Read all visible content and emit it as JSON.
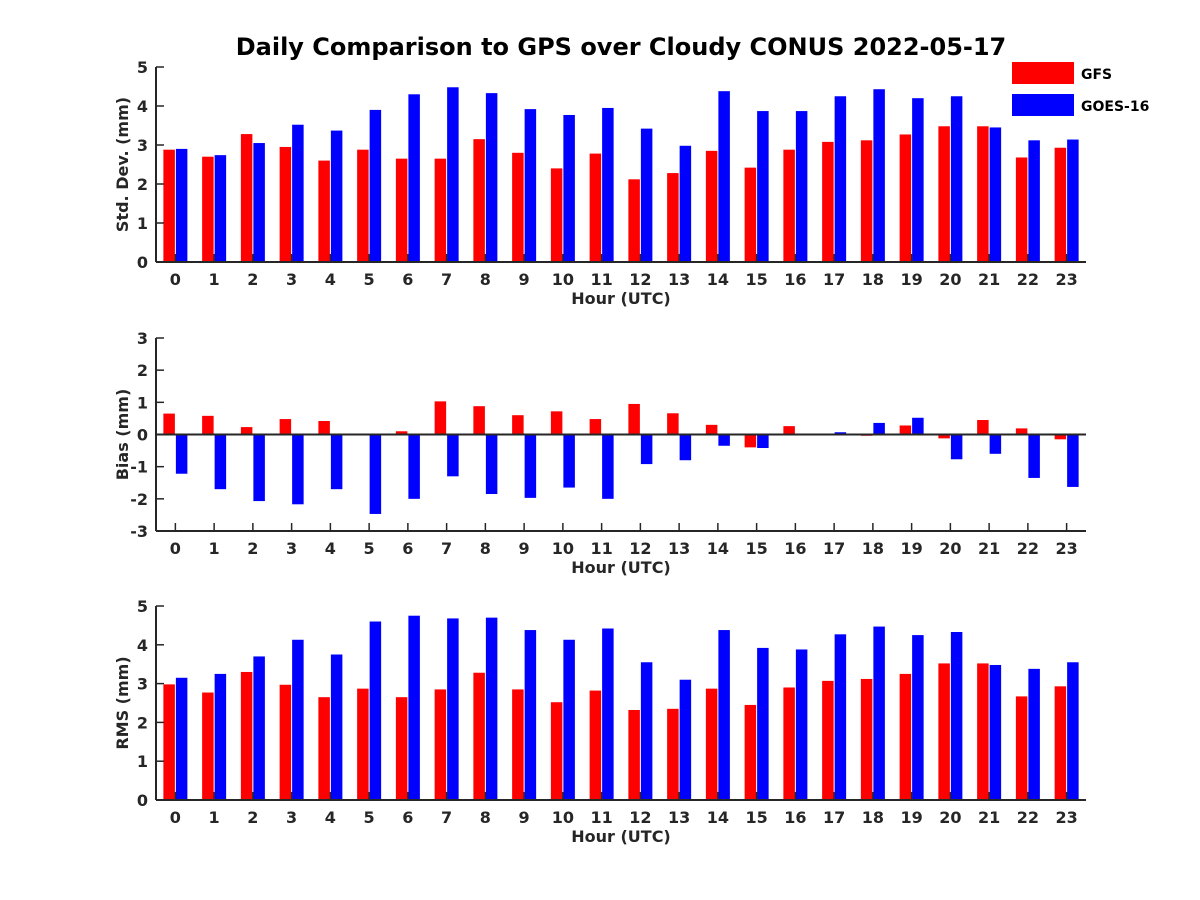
{
  "title": "Daily Comparison to GPS over Cloudy CONUS 2022-05-17",
  "legend": {
    "placement": "top-right",
    "entries": [
      {
        "name": "GFS",
        "color": "#ff0000"
      },
      {
        "name": "GOES-16",
        "color": "#0000ff"
      }
    ]
  },
  "chart_data": [
    {
      "type": "bar",
      "ylabel": "Std. Dev. (mm)",
      "xlabel": "Hour (UTC)",
      "ylim": [
        0,
        5
      ],
      "yticks": [
        0,
        1,
        2,
        3,
        4,
        5
      ],
      "categories": [
        "0",
        "1",
        "2",
        "3",
        "4",
        "5",
        "6",
        "7",
        "8",
        "9",
        "10",
        "11",
        "12",
        "13",
        "14",
        "15",
        "16",
        "17",
        "18",
        "19",
        "20",
        "21",
        "22",
        "23"
      ],
      "series": [
        {
          "name": "GFS",
          "color": "#ff0000",
          "values": [
            2.88,
            2.7,
            3.28,
            2.95,
            2.6,
            2.88,
            2.65,
            2.65,
            3.15,
            2.8,
            2.4,
            2.78,
            2.12,
            2.28,
            2.85,
            2.42,
            2.88,
            3.08,
            3.12,
            3.27,
            3.48,
            3.48,
            2.68,
            2.93
          ]
        },
        {
          "name": "GOES-16",
          "color": "#0000ff",
          "values": [
            2.9,
            2.74,
            3.05,
            3.52,
            3.37,
            3.9,
            4.3,
            4.48,
            4.33,
            3.92,
            3.77,
            3.95,
            3.42,
            2.98,
            4.38,
            3.87,
            3.87,
            4.25,
            4.43,
            4.2,
            4.25,
            3.45,
            3.12,
            3.14
          ]
        }
      ]
    },
    {
      "type": "bar",
      "ylabel": "Bias (mm)",
      "xlabel": "Hour (UTC)",
      "ylim": [
        -3,
        3
      ],
      "yticks": [
        -3,
        -2,
        -1,
        0,
        1,
        2,
        3
      ],
      "categories": [
        "0",
        "1",
        "2",
        "3",
        "4",
        "5",
        "6",
        "7",
        "8",
        "9",
        "10",
        "11",
        "12",
        "13",
        "14",
        "15",
        "16",
        "17",
        "18",
        "19",
        "20",
        "21",
        "22",
        "23"
      ],
      "series": [
        {
          "name": "GFS",
          "color": "#ff0000",
          "values": [
            0.65,
            0.58,
            0.23,
            0.48,
            0.42,
            0.0,
            0.1,
            1.03,
            0.88,
            0.6,
            0.72,
            0.48,
            0.95,
            0.66,
            0.3,
            -0.4,
            0.26,
            0.0,
            -0.04,
            0.28,
            -0.12,
            0.45,
            0.19,
            -0.15
          ]
        },
        {
          "name": "GOES-16",
          "color": "#0000ff",
          "values": [
            -1.22,
            -1.7,
            -2.07,
            -2.17,
            -1.7,
            -2.47,
            -2.0,
            -1.3,
            -1.85,
            -1.97,
            -1.65,
            -2.0,
            -0.92,
            -0.8,
            -0.35,
            -0.42,
            0.0,
            0.07,
            0.36,
            0.52,
            -0.77,
            -0.6,
            -1.35,
            -1.63
          ]
        }
      ]
    },
    {
      "type": "bar",
      "ylabel": "RMS (mm)",
      "xlabel": "Hour (UTC)",
      "ylim": [
        0,
        5
      ],
      "yticks": [
        0,
        1,
        2,
        3,
        4,
        5
      ],
      "categories": [
        "0",
        "1",
        "2",
        "3",
        "4",
        "5",
        "6",
        "7",
        "8",
        "9",
        "10",
        "11",
        "12",
        "13",
        "14",
        "15",
        "16",
        "17",
        "18",
        "19",
        "20",
        "21",
        "22",
        "23"
      ],
      "series": [
        {
          "name": "GFS",
          "color": "#ff0000",
          "values": [
            2.98,
            2.77,
            3.3,
            2.97,
            2.65,
            2.87,
            2.65,
            2.85,
            3.28,
            2.85,
            2.52,
            2.82,
            2.32,
            2.35,
            2.87,
            2.45,
            2.9,
            3.07,
            3.12,
            3.25,
            3.52,
            3.52,
            2.67,
            2.93
          ]
        },
        {
          "name": "GOES-16",
          "color": "#0000ff",
          "values": [
            3.15,
            3.25,
            3.7,
            4.13,
            3.75,
            4.6,
            4.75,
            4.68,
            4.7,
            4.38,
            4.13,
            4.42,
            3.55,
            3.1,
            4.38,
            3.92,
            3.88,
            4.27,
            4.47,
            4.25,
            4.33,
            3.48,
            3.38,
            3.55
          ]
        }
      ]
    }
  ]
}
